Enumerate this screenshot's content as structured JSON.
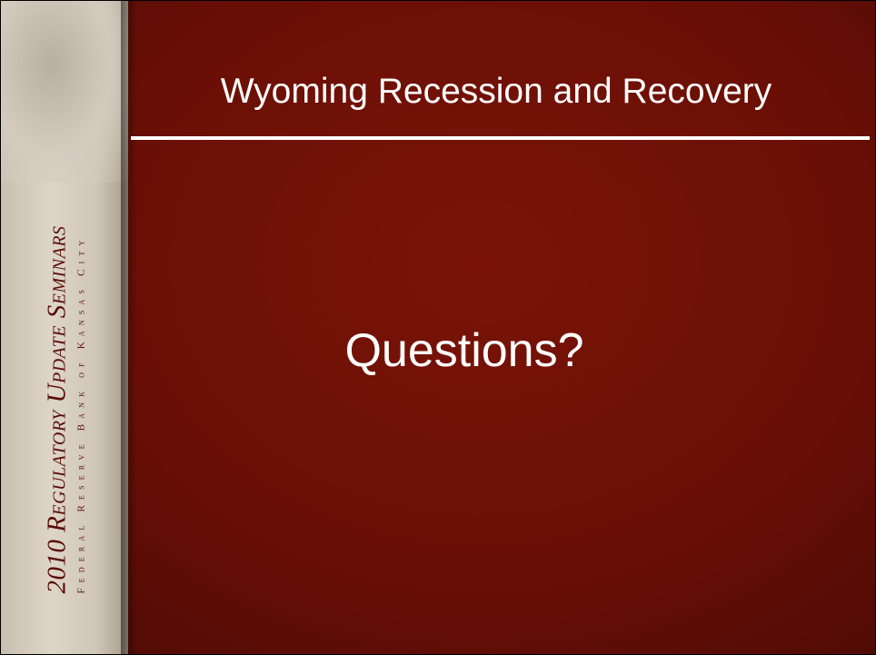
{
  "slide": {
    "title": "Wyoming Recession and Recovery",
    "body": "Questions?",
    "sidebar": {
      "line1": "2010 Regulatory Update Seminars",
      "line2": "Federal Reserve Bank of Kansas City"
    }
  }
}
